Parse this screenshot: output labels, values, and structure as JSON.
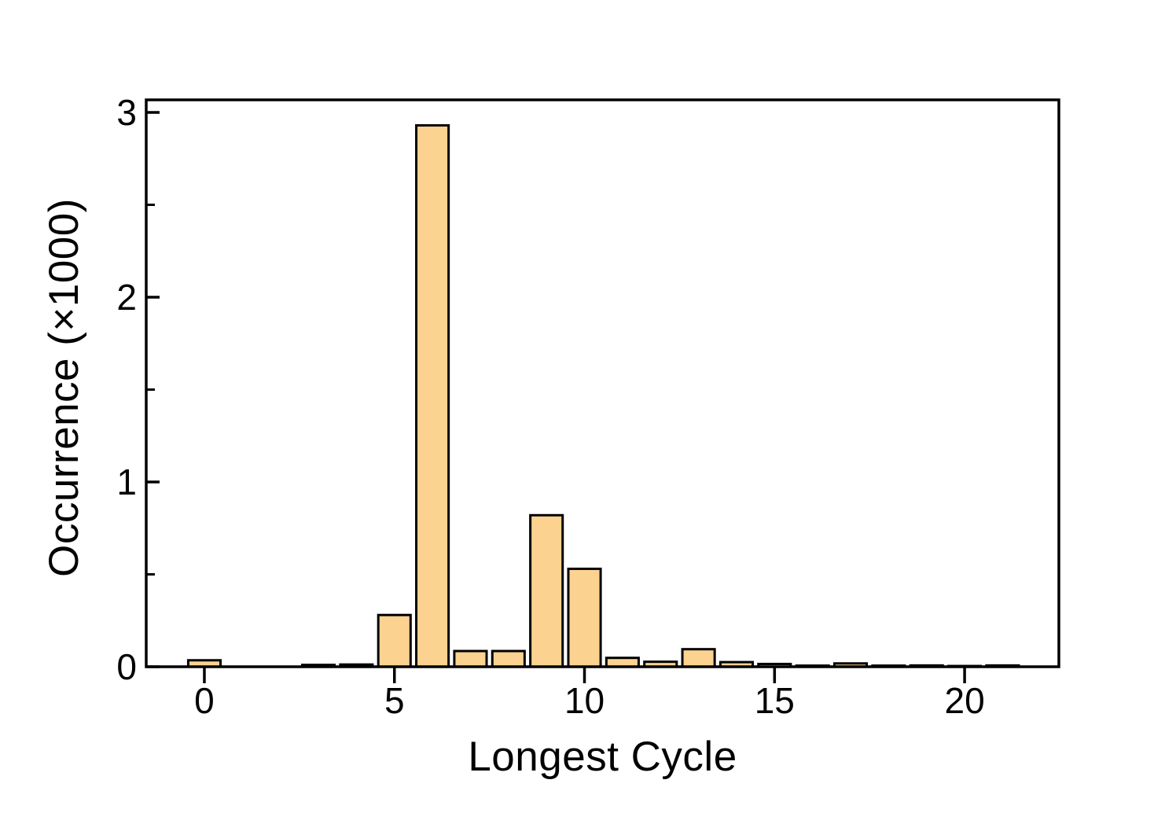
{
  "chart_data": {
    "type": "bar",
    "title": "",
    "xlabel": "Longest Cycle",
    "ylabel": "Occurrence (×1000)",
    "x": [
      0,
      1,
      2,
      3,
      4,
      5,
      6,
      7,
      8,
      9,
      10,
      11,
      12,
      13,
      14,
      15,
      16,
      17,
      18,
      19,
      20,
      21
    ],
    "values": [
      0.035,
      0,
      0,
      0.01,
      0.012,
      0.28,
      2.93,
      0.085,
      0.085,
      0.82,
      0.53,
      0.048,
      0.027,
      0.095,
      0.025,
      0.015,
      0.006,
      0.018,
      0.006,
      0.007,
      0.004,
      0.007
    ],
    "xtick_values": [
      0,
      5,
      10,
      15,
      20
    ],
    "xtick_labels": [
      "0",
      "5",
      "10",
      "15",
      "20"
    ],
    "ytick_values": [
      0,
      1,
      2,
      3
    ],
    "ytick_labels": [
      "0",
      "1",
      "2",
      "3"
    ],
    "ytick_minor_values": [
      0.5,
      1.5,
      2.5
    ],
    "xlim": [
      -1.53,
      22.48
    ],
    "ylim": [
      0,
      3.068
    ],
    "bar_width_fraction": 0.85,
    "grid": false,
    "legend": null,
    "bar_fill_color": "#fcd291",
    "bar_edge_color": "#000000",
    "axis_color": "#000000",
    "tick_label_font_size": 46,
    "axis_title_font_size": 53
  }
}
